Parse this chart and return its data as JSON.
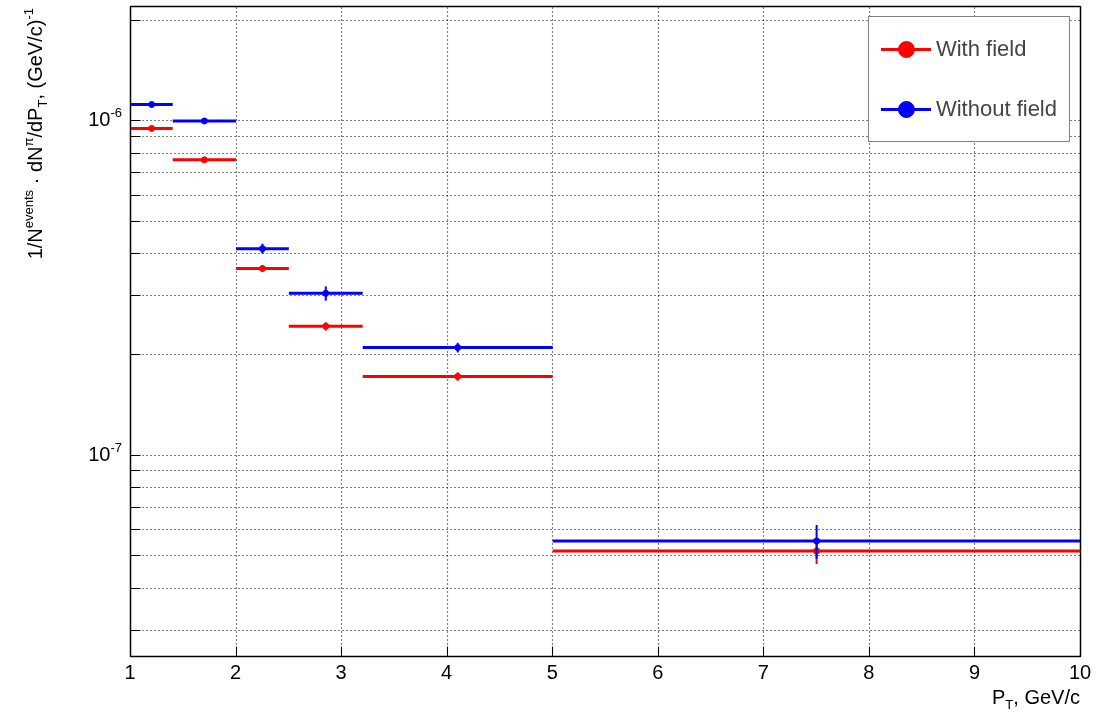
{
  "chart_data": {
    "type": "scatter",
    "xlabel": "P$_{T}$, GeV/c",
    "ylabel": "1/N$^{events}$ · dN$^{π}$/dP$_{T}$, (GeV/c)$^{-1}$",
    "log": "y",
    "grid": true,
    "legend": "top right",
    "marker": "circle",
    "xlim": [
      1,
      10
    ],
    "xticks": [
      1,
      2,
      3,
      4,
      5,
      6,
      7,
      8,
      9,
      10
    ],
    "ylim": [
      2.5e-08,
      2.2e-06
    ],
    "yticks": [
      {
        "value": 3e-08,
        "label": null
      },
      {
        "value": 4e-08,
        "label": null
      },
      {
        "value": 5e-08,
        "label": null
      },
      {
        "value": 6e-08,
        "label": null
      },
      {
        "value": 7e-08,
        "label": null
      },
      {
        "value": 8e-08,
        "label": null
      },
      {
        "value": 9e-08,
        "label": null
      },
      {
        "value": 1e-07,
        "label": "10$^{-7}$"
      },
      {
        "value": 2e-07,
        "label": null
      },
      {
        "value": 3e-07,
        "label": null
      },
      {
        "value": 4e-07,
        "label": null
      },
      {
        "value": 5e-07,
        "label": null
      },
      {
        "value": 6e-07,
        "label": null
      },
      {
        "value": 7e-07,
        "label": null
      },
      {
        "value": 8e-07,
        "label": null
      },
      {
        "value": 9e-07,
        "label": null
      },
      {
        "value": 1e-06,
        "label": "10$^{-6}$"
      },
      {
        "value": 2e-06,
        "label": null
      }
    ],
    "series": [
      {
        "name": "With field",
        "color": "#ff0000",
        "x": [
          1.2,
          1.7,
          2.25,
          2.85,
          4.1,
          7.5
        ],
        "values": [
          9.5e-07,
          7.65e-07,
          3.62e-07,
          2.43e-07,
          1.72e-07,
          5.17e-08
        ],
        "xerrors": [
          0.2,
          0.3,
          0.25,
          0.35,
          0.9,
          2.5
        ],
        "errors": [
          null,
          null,
          7.6e-09,
          7e-09,
          5e-09,
          4.4e-09
        ]
      },
      {
        "name": "Without field",
        "color": "#0000ff",
        "x": [
          1.2,
          1.7,
          2.25,
          2.85,
          4.1,
          7.5
        ],
        "values": [
          1.12e-06,
          1e-06,
          4.15e-07,
          3.05e-07,
          2.1e-07,
          5.54e-08
        ],
        "xerrors": [
          0.2,
          0.3,
          0.25,
          0.35,
          0.9,
          2.5
        ],
        "errors": [
          null,
          null,
          1.45e-08,
          1.5e-08,
          7e-09,
          6.4e-09
        ]
      }
    ]
  }
}
